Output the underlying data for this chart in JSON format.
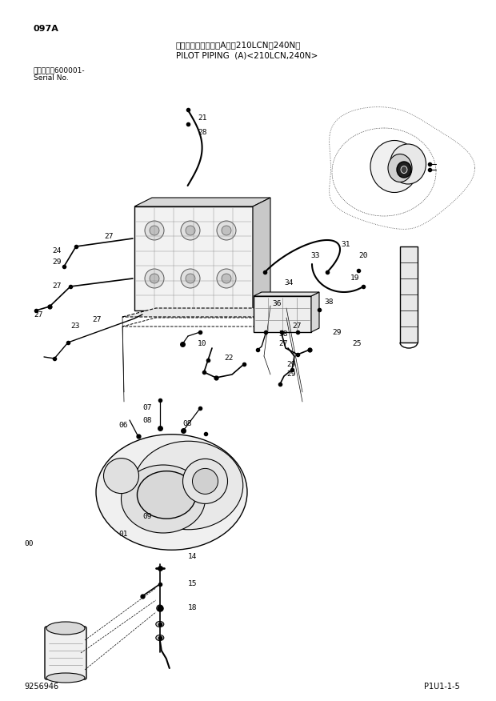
{
  "title_jp": "パイロット配管　（A）＜210LCN，240N＞",
  "title_en": "PILOT PIPING  (A)<210LCN,240N>",
  "page_id": "097A",
  "serial_label_jp": "適用号機　600001-",
  "serial_label_en": "Serial No.",
  "figure_number": "P1U1-1-5",
  "catalog_number": "9256946",
  "bg_color": "#ffffff",
  "text_color": "#000000"
}
